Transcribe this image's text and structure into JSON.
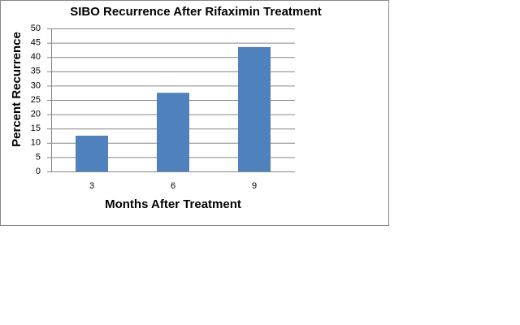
{
  "chart_data": {
    "type": "bar",
    "title": "SIBO Recurrence After Rifaximin Treatment",
    "x_label": "Months After Treatment",
    "y_label": "Percent Recurrence",
    "categories": [
      "3",
      "6",
      "9"
    ],
    "values": [
      12.5,
      27.5,
      43.5
    ],
    "color": "#4f81bd",
    "ylim": [
      0,
      50
    ],
    "yticks": [
      0,
      5,
      10,
      15,
      20,
      25,
      30,
      35,
      40,
      45,
      50
    ],
    "grid": true
  }
}
